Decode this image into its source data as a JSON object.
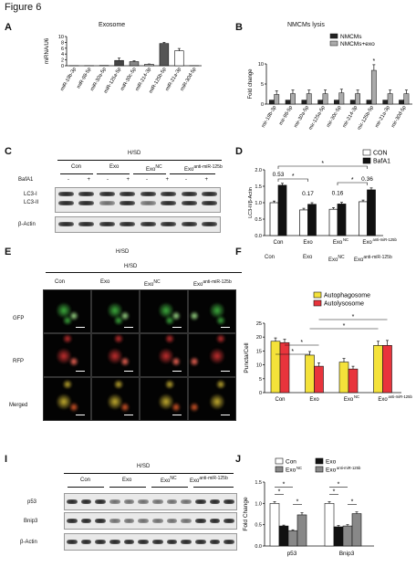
{
  "figure_title": "Figure 6",
  "panels": {
    "A": {
      "label": "A",
      "title": "Exosome",
      "ylabel": "miRNA/U6"
    },
    "B": {
      "label": "B",
      "title": "NMCMs lysis",
      "ylabel": "Fold change",
      "legend": [
        "NMCMs",
        "NMCMs+exo"
      ],
      "star": "*"
    },
    "C": {
      "label": "C",
      "condition": "H/SD",
      "groups": [
        "Con",
        "Exo",
        "Exo",
        "Exo"
      ],
      "group_sup": [
        "",
        "",
        "NC",
        "anti-miR-125b"
      ],
      "bafa1_label": "BafA1",
      "bafa1_marks": [
        "-",
        "+",
        "-",
        "+",
        "-",
        "+",
        "-",
        "+"
      ],
      "bands": [
        "LC3-I",
        "LC3-II",
        "β-Actin"
      ]
    },
    "D": {
      "label": "D",
      "ylabel": "LC3-II/β-Actin",
      "legend": [
        "CON",
        "BafA1"
      ],
      "ratios": [
        "0.53",
        "0.17",
        "0.16",
        "0.36"
      ],
      "xlabels": [
        "Con",
        "Exo",
        "Exo",
        "Exo"
      ],
      "xsup": [
        "",
        "",
        "NC",
        "anti-miR-125b"
      ]
    },
    "E": {
      "label": "E",
      "condition_top": "H/SD",
      "condition": "H/SD",
      "columns": [
        "Con",
        "Exo",
        "Exo",
        "Exo"
      ],
      "col_sup": [
        "",
        "",
        "NC",
        "anti-miR-125b"
      ],
      "rows": [
        "GFP",
        "RFP",
        "Merged"
      ]
    },
    "F": {
      "label": "F",
      "ylabel": "Puncta/Cell",
      "legend": [
        "Autophagosome",
        "Autolysosome"
      ],
      "xlabels": [
        "Con",
        "Exo",
        "Exo",
        "Exo"
      ],
      "xsup": [
        "",
        "",
        "NC",
        "anti-miR-125b"
      ],
      "header_labels": [
        "Con",
        "Exo",
        "Exo",
        "Exo"
      ],
      "header_sup": [
        "",
        "",
        "NC",
        "anti-miR-125b"
      ]
    },
    "I": {
      "label": "I",
      "condition": "H/SD",
      "groups": [
        "Con",
        "Exo",
        "Exo",
        "Exo"
      ],
      "group_sup": [
        "",
        "",
        "NC",
        "anti-miR-125b"
      ],
      "bands": [
        "p53",
        "Bnip3",
        "β-Actin"
      ]
    },
    "J": {
      "label": "J",
      "ylabel": "Fold Change",
      "legend": [
        "Con",
        "Exo",
        "Exo",
        "Exo"
      ],
      "legend_sup": [
        "",
        "",
        "NC",
        "anti-miR-125b"
      ],
      "xlabels": [
        "p53",
        "Bnip3"
      ]
    }
  },
  "chart_data": [
    {
      "panel": "A",
      "type": "bar",
      "title": "Exosome",
      "xlabel": "",
      "ylabel": "miRNA/U6",
      "ylim": [
        0,
        10
      ],
      "yticks": [
        0,
        2,
        4,
        6,
        8,
        10
      ],
      "categories": [
        "miR-19b-3p",
        "miR-98-5p",
        "miR-30a-5p",
        "miR-125a-5p",
        "miR-30c-5p",
        "miR-214-3p",
        "miR-125b-5p",
        "miR-21a-3p",
        "miR-30d-5p"
      ],
      "values": [
        0.05,
        0.05,
        0.1,
        1.8,
        1.4,
        0.5,
        7.6,
        5.1,
        0.05
      ],
      "errors": [
        0.02,
        0.02,
        0.05,
        0.8,
        0.3,
        0.1,
        0.4,
        0.8,
        0.02
      ],
      "colors": [
        "#333333",
        "#333333",
        "#333333",
        "#444444",
        "#888888",
        "#cccccc",
        "#555555",
        "#ffffff",
        "#333333"
      ]
    },
    {
      "panel": "B",
      "type": "bar",
      "title": "NMCMs lysis",
      "xlabel": "",
      "ylabel": "Fold change",
      "ylim": [
        0,
        10
      ],
      "yticks": [
        0,
        5,
        10
      ],
      "categories": [
        "mir-19b-3p",
        "mir-98-5p",
        "mir-30a-5p",
        "mir-125a-5p",
        "mir-30c-5p",
        "mir-214-3p",
        "mir-125b-5p",
        "mir-21a-3p",
        "mir-30d-5p"
      ],
      "series": [
        {
          "name": "NMCMs",
          "values": [
            1,
            1,
            1,
            1,
            1,
            1,
            1,
            1,
            1
          ],
          "errors": [
            0,
            0,
            0,
            0,
            0,
            0,
            0,
            0,
            0
          ]
        },
        {
          "name": "NMCMs+exo",
          "values": [
            2.4,
            2.6,
            2.6,
            2.6,
            2.8,
            2.6,
            8.4,
            2.6,
            2.6
          ],
          "errors": [
            0.9,
            0.9,
            0.9,
            0.9,
            0.9,
            0.9,
            1.4,
            0.9,
            0.9
          ]
        }
      ]
    },
    {
      "panel": "D",
      "type": "bar",
      "xlabel": "",
      "ylabel": "LC3-II/β-Actin",
      "ylim": [
        0,
        2.0
      ],
      "yticks": [
        0.0,
        0.5,
        1.0,
        1.5,
        2.0
      ],
      "categories": [
        "Con",
        "Exo",
        "Exo NC",
        "Exo anti-miR-125b"
      ],
      "series": [
        {
          "name": "CON",
          "values": [
            1.0,
            0.78,
            0.8,
            1.03
          ],
          "errors": [
            0.05,
            0.05,
            0.05,
            0.05
          ]
        },
        {
          "name": "BafA1",
          "values": [
            1.53,
            0.95,
            0.96,
            1.39
          ],
          "errors": [
            0.06,
            0.05,
            0.05,
            0.06
          ]
        }
      ]
    },
    {
      "panel": "F",
      "type": "bar",
      "xlabel": "",
      "ylabel": "Puncta/Cell",
      "ylim": [
        0,
        25
      ],
      "yticks": [
        0,
        5,
        10,
        15,
        20,
        25
      ],
      "categories": [
        "Con",
        "Exo",
        "Exo NC",
        "Exo anti-miR-125b"
      ],
      "series": [
        {
          "name": "Autophagosome",
          "values": [
            18.5,
            13.5,
            11,
            17
          ],
          "errors": [
            1.2,
            1.3,
            1.3,
            1.5
          ]
        },
        {
          "name": "Autolysosome",
          "values": [
            18,
            9.5,
            8.5,
            17
          ],
          "errors": [
            1.2,
            1.2,
            1.0,
            1.8
          ]
        }
      ]
    },
    {
      "panel": "J",
      "type": "bar",
      "xlabel": "",
      "ylabel": "Fold Change",
      "ylim": [
        0,
        1.5
      ],
      "yticks": [
        0.0,
        0.5,
        1.0,
        1.5
      ],
      "categories": [
        "p53",
        "Bnip3"
      ],
      "series": [
        {
          "name": "Con",
          "values": [
            1.0,
            1.0
          ],
          "errors": [
            0.04,
            0.04
          ]
        },
        {
          "name": "Exo",
          "values": [
            0.47,
            0.45
          ],
          "errors": [
            0.02,
            0.03
          ]
        },
        {
          "name": "Exo NC",
          "values": [
            0.36,
            0.47
          ],
          "errors": [
            0.02,
            0.03
          ]
        },
        {
          "name": "Exo anti-miR-125b",
          "values": [
            0.73,
            0.76
          ],
          "errors": [
            0.05,
            0.04
          ]
        }
      ]
    }
  ]
}
